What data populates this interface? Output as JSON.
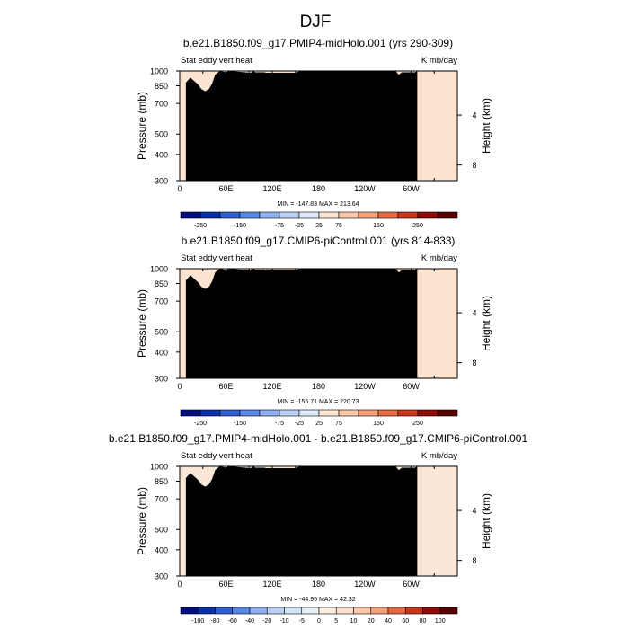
{
  "figure": {
    "title": "DJF"
  },
  "colors": {
    "cbar_a": [
      "#000f80",
      "#0a31a8",
      "#2e5dcf",
      "#5a86e4",
      "#8fb0f0",
      "#bcd1f6",
      "#dde9fa",
      "#fde4d0",
      "#fbc9a8",
      "#f4a07a",
      "#e56a44",
      "#c9361e",
      "#8f0c08",
      "#5a0100"
    ],
    "cbar_b": [
      "#000f80",
      "#0a31a8",
      "#2e5dcf",
      "#5a86e4",
      "#8fb0f0",
      "#bcd1f6",
      "#d4e4f8",
      "#e6eefa",
      "#fdeee0",
      "#fde0cb",
      "#fbc9a8",
      "#f4a07a",
      "#e56a44",
      "#c9361e",
      "#8f0c08",
      "#5a0100"
    ],
    "topography": "#000000"
  },
  "panels": [
    {
      "title": "b.e21.B1850.f09_g17.PMIP4-midHolo.001 (yrs 290-309)",
      "left_label": "Stat eddy vert heat",
      "right_label": "K mb/day",
      "ylabel": "Pressure (mb)",
      "ylabel_right": "Height (km)",
      "stats": "MIN = -147.83  MAX = 213.64",
      "cbar_labels": [
        "-250",
        "-150",
        "-75",
        "-25",
        "25",
        "75",
        "150",
        "250"
      ]
    },
    {
      "title": "b.e21.B1850.f09_g17.CMIP6-piControl.001 (yrs 814-833)",
      "left_label": "Stat eddy vert heat",
      "right_label": "K mb/day",
      "ylabel": "Pressure (mb)",
      "ylabel_right": "Height (km)",
      "stats": "MIN = -155.71  MAX = 220.73",
      "cbar_labels": [
        "-250",
        "-150",
        "-75",
        "-25",
        "25",
        "75",
        "150",
        "250"
      ]
    },
    {
      "title": "b.e21.B1850.f09_g17.PMIP4-midHolo.001 - b.e21.B1850.f09_g17.CMIP6-piControl.001",
      "left_label": "Stat eddy vert heat",
      "right_label": "K mb/day",
      "ylabel": "Pressure (mb)",
      "ylabel_right": "Height (km)",
      "stats": "MIN = -44.95  MAX = 42.32",
      "cbar_labels": [
        "-100",
        "-80",
        "-60",
        "-40",
        "-20",
        "-10",
        "-5",
        "0",
        "5",
        "10",
        "20",
        "40",
        "60",
        "80",
        "100"
      ]
    }
  ],
  "chart_data": [
    {
      "type": "heatmap",
      "title": "b.e21.B1850.f09_g17.PMIP4-midHolo.001 (yrs 290-309)",
      "xlabel": "",
      "ylabel": "Pressure (mb)",
      "ylabel_right": "Height (km)",
      "x_ticks": [
        "0",
        "60E",
        "120E",
        "180",
        "120W",
        "60W"
      ],
      "x_tick_values": [
        0,
        60,
        120,
        180,
        240,
        300
      ],
      "xlim": [
        0,
        360
      ],
      "y_ticks": [
        300,
        400,
        500,
        700,
        850,
        1000
      ],
      "ylim": [
        1000,
        300
      ],
      "y_scale": "log",
      "y_right_ticks": [
        4,
        8
      ],
      "units": "K mb/day",
      "min": -147.83,
      "max": 213.64,
      "levels": [
        -250,
        -150,
        -75,
        -25,
        25,
        75,
        150,
        250
      ]
    },
    {
      "type": "heatmap",
      "title": "b.e21.B1850.f09_g17.CMIP6-piControl.001 (yrs 814-833)",
      "xlabel": "",
      "ylabel": "Pressure (mb)",
      "ylabel_right": "Height (km)",
      "x_ticks": [
        "0",
        "60E",
        "120E",
        "180",
        "120W",
        "60W"
      ],
      "x_tick_values": [
        0,
        60,
        120,
        180,
        240,
        300
      ],
      "xlim": [
        0,
        360
      ],
      "y_ticks": [
        300,
        400,
        500,
        700,
        850,
        1000
      ],
      "ylim": [
        1000,
        300
      ],
      "y_scale": "log",
      "y_right_ticks": [
        4,
        8
      ],
      "units": "K mb/day",
      "min": -155.71,
      "max": 220.73,
      "levels": [
        -250,
        -150,
        -75,
        -25,
        25,
        75,
        150,
        250
      ]
    },
    {
      "type": "heatmap",
      "title": "b.e21.B1850.f09_g17.PMIP4-midHolo.001 - b.e21.B1850.f09_g17.CMIP6-piControl.001",
      "xlabel": "",
      "ylabel": "Pressure (mb)",
      "ylabel_right": "Height (km)",
      "x_ticks": [
        "0",
        "60E",
        "120E",
        "180",
        "120W",
        "60W"
      ],
      "x_tick_values": [
        0,
        60,
        120,
        180,
        240,
        300
      ],
      "xlim": [
        0,
        360
      ],
      "y_ticks": [
        300,
        400,
        500,
        700,
        850,
        1000
      ],
      "ylim": [
        1000,
        300
      ],
      "y_scale": "log",
      "y_right_ticks": [
        4,
        8
      ],
      "units": "K mb/day",
      "min": -44.95,
      "max": 42.32,
      "levels": [
        -100,
        -80,
        -60,
        -40,
        -20,
        -10,
        -5,
        0,
        5,
        10,
        20,
        40,
        60,
        80,
        100
      ]
    }
  ]
}
